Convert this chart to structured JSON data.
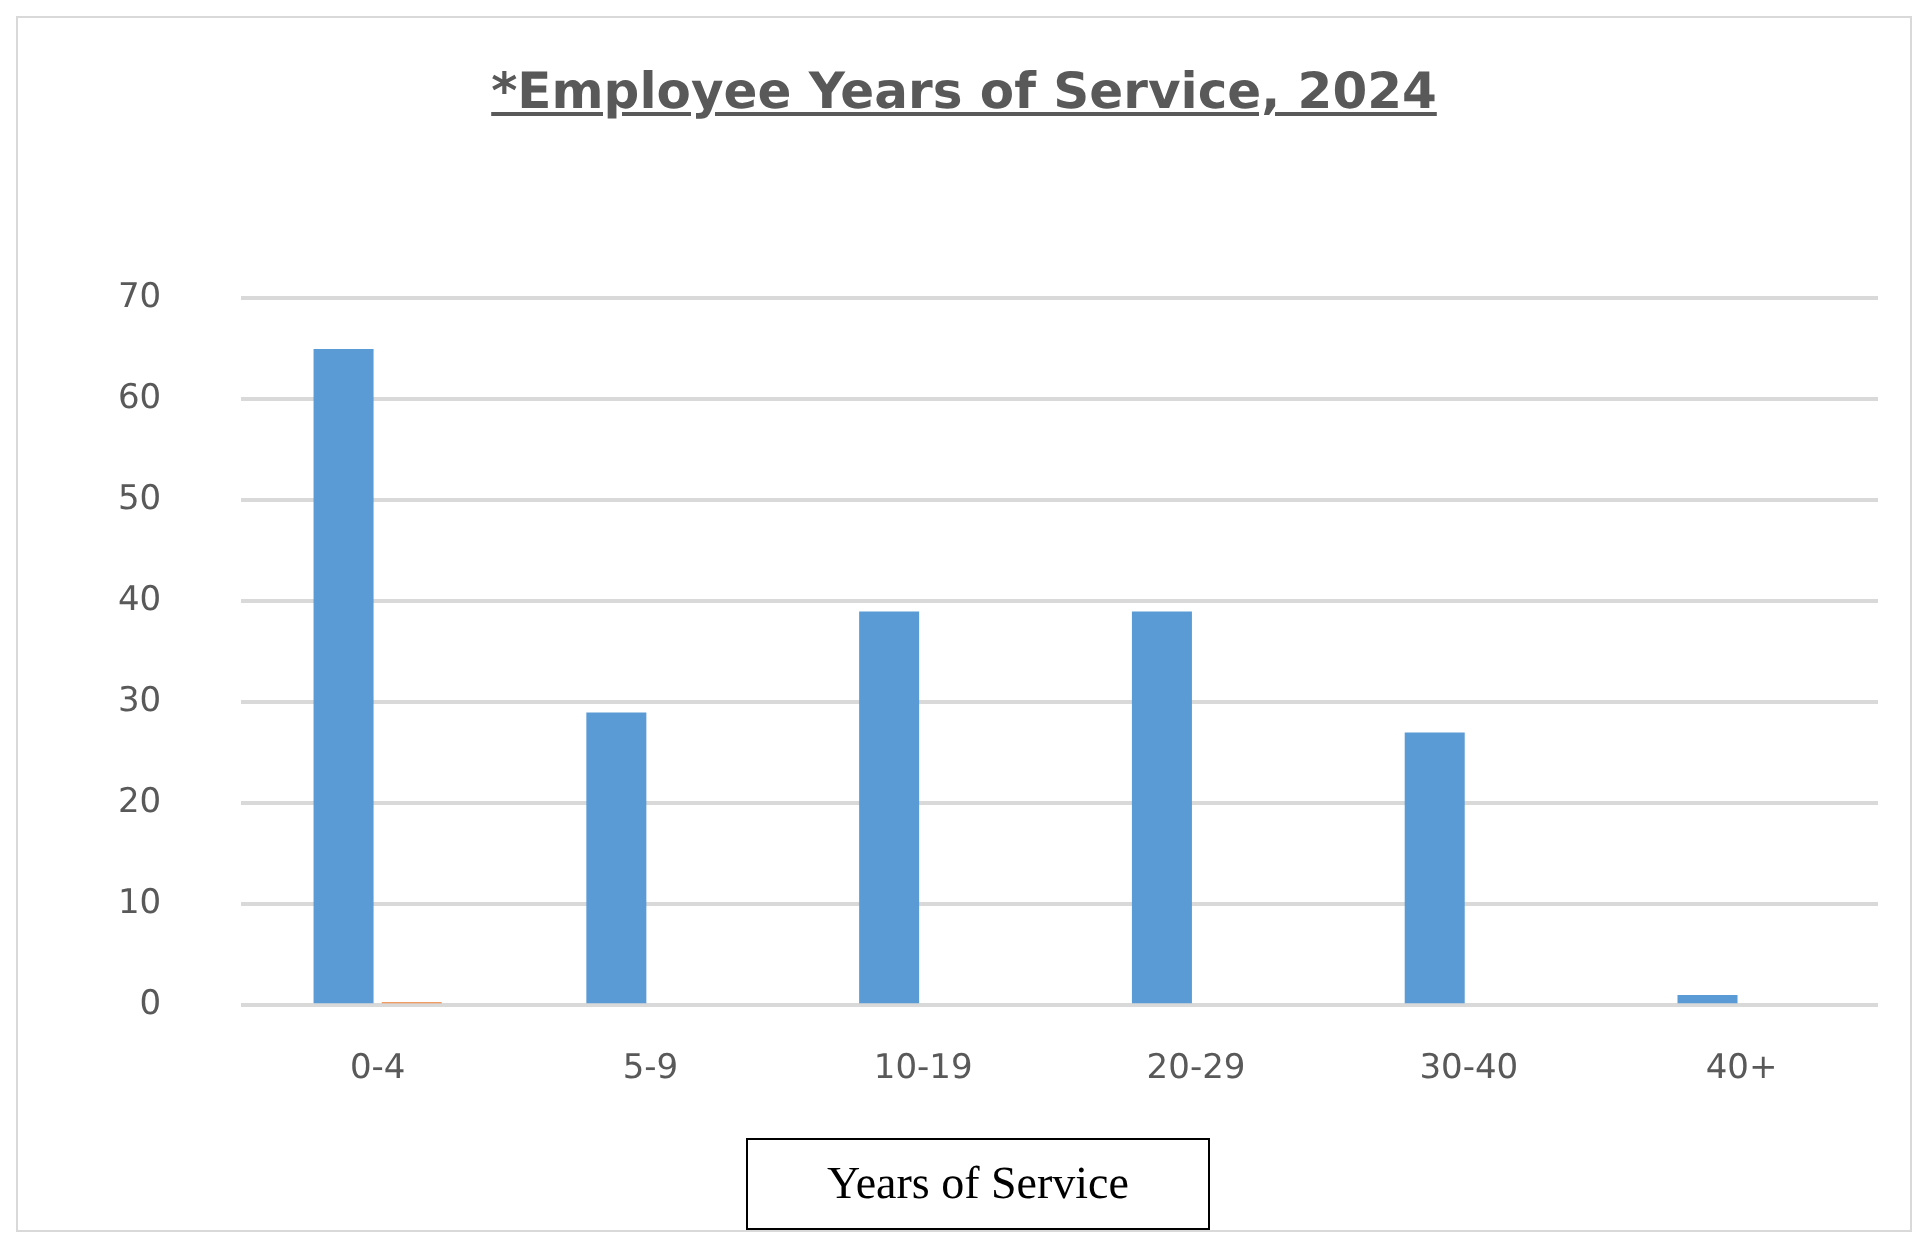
{
  "chart_data": {
    "type": "bar",
    "title": "*Employee Years of Service, 2024",
    "xlabel": "Years of Service",
    "categories": [
      "0-4",
      "5-9",
      "10-19",
      "20-29",
      "30-40",
      "40+"
    ],
    "series": [
      {
        "color": "#5b9bd5",
        "values": [
          65,
          29,
          39,
          39,
          27,
          1
        ]
      },
      {
        "color": "#ed7d31",
        "values": [
          0.3,
          null,
          null,
          null,
          null,
          null
        ]
      }
    ],
    "ylim": [
      0,
      70
    ],
    "yticks": [
      0,
      10,
      20,
      30,
      40,
      50,
      60,
      70
    ],
    "grid": "y",
    "legend": false
  }
}
